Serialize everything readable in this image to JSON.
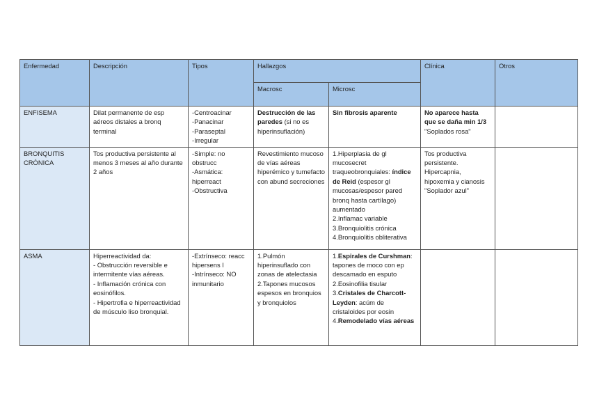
{
  "header": {
    "enfermedad": "Enfermedad",
    "descripcion": "Descripción",
    "tipos": "Tipos",
    "hallazgos": "Hallazgos",
    "macrosc": "Macrosc",
    "microsc": "Microsc",
    "clinica": "Clínica",
    "otros": "Otros"
  },
  "colors": {
    "header_bg": "#a5c6e9",
    "first_col_bg": "#dbe8f6"
  },
  "rows": [
    {
      "enfermedad": [
        [
          {
            "t": "ENFISEMA"
          }
        ]
      ],
      "descripcion": [
        [
          {
            "t": "Dilat permanente de esp aéreos distales a bronq terminal"
          }
        ]
      ],
      "tipos": [
        [
          {
            "t": "-Centroacinar"
          }
        ],
        [
          {
            "t": "-Panacinar"
          }
        ],
        [
          {
            "t": "-Paraseptal"
          }
        ],
        [
          {
            "t": "-Irregular"
          }
        ]
      ],
      "macrosc": [
        [
          {
            "t": "Destrucción de las paredes",
            "b": true
          },
          {
            "t": " (si no es hiperinsuflación)"
          }
        ]
      ],
      "microsc": [
        [
          {
            "t": "Sin fibrosis aparente",
            "b": true
          }
        ]
      ],
      "clinica": [
        [
          {
            "t": "No aparece hasta que se daña min 1/3",
            "b": true
          }
        ],
        [
          {
            "t": "\"Soplados rosa\""
          }
        ]
      ],
      "otros": []
    },
    {
      "enfermedad": [
        [
          {
            "t": "BRONQUITIS CRÓNICA"
          }
        ]
      ],
      "descripcion": [
        [
          {
            "t": "Tos productiva persistente al menos 3 meses al año durante 2 años"
          }
        ]
      ],
      "tipos": [
        [
          {
            "t": "-Simple: no obstrucc"
          }
        ],
        [
          {
            "t": "-Asmática: hiperreact"
          }
        ],
        [
          {
            "t": "-Obstructiva"
          }
        ]
      ],
      "macrosc": [
        [
          {
            "t": "Revestimiento mucoso de vías aéreas hiperémico y tumefacto con abund secreciones"
          }
        ]
      ],
      "microsc": [
        [
          {
            "t": "1.Hiperplasia de gl mucosecret traqueobronquiales: "
          },
          {
            "t": "índice de Reid",
            "b": true
          },
          {
            "t": " (espesor gl mucosas/espesor pared bronq hasta cartílago) aumentado"
          }
        ],
        [
          {
            "t": "2.Inflamac variable"
          }
        ],
        [
          {
            "t": "3.Bronquiolitis crónica"
          }
        ],
        [
          {
            "t": "4.Bronquiolitis obliterativa"
          }
        ]
      ],
      "clinica": [
        [
          {
            "t": "Tos productiva persistente."
          }
        ],
        [
          {
            "t": "Hipercapnia, hipoxemia y cianosis"
          }
        ],
        [
          {
            "t": "\"Soplador azul\""
          }
        ]
      ],
      "otros": []
    },
    {
      "enfermedad": [
        [
          {
            "t": "ASMA"
          }
        ]
      ],
      "descripcion": [
        [
          {
            "t": "Hiperreactividad da:"
          }
        ],
        [
          {
            "t": "- Obstrucción reversible e intermitente vías aéreas."
          }
        ],
        [
          {
            "t": "- Inflamación crónica con eosinófilos."
          }
        ],
        [
          {
            "t": " - Hipertrofia e hiperreactividad de músculo liso bronquial."
          }
        ]
      ],
      "tipos": [
        [
          {
            "t": "-Extrínseco: reacc hipersens I"
          }
        ],
        [
          {
            "t": "-Intrínseco: NO inmunitario"
          }
        ]
      ],
      "macrosc": [
        [
          {
            "t": "1.Pulmón hiperinsuflado con zonas de atelectasia"
          }
        ],
        [
          {
            "t": "2.Tapones mucosos espesos en bronquios y bronquiolos"
          }
        ]
      ],
      "microsc": [
        [
          {
            "t": "1."
          },
          {
            "t": "Espirales de Curshman",
            "b": true
          },
          {
            "t": ": tapones de moco con ep descamado en esputo"
          }
        ],
        [
          {
            "t": "2.Eosinofilia tisular"
          }
        ],
        [
          {
            "t": "3."
          },
          {
            "t": "Cristales de Charcott-Leyden",
            "b": true
          },
          {
            "t": ": acúm de cristaloides por eosin"
          }
        ],
        [
          {
            "t": "4."
          },
          {
            "t": "Remodelado vías aéreas",
            "b": true
          }
        ]
      ],
      "clinica": [],
      "otros": []
    }
  ]
}
